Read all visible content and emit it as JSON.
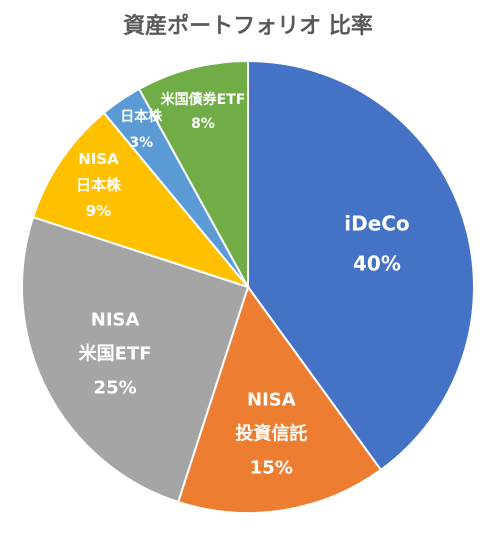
{
  "chart_data": {
    "type": "pie",
    "title": "資産ポートフォリオ 比率",
    "slices": [
      {
        "label_lines": [
          "iDeCo"
        ],
        "value": 40,
        "value_label": "40%",
        "color": "#4472C4"
      },
      {
        "label_lines": [
          "NISA",
          "投資信託"
        ],
        "value": 15,
        "value_label": "15%",
        "color": "#ED7D31"
      },
      {
        "label_lines": [
          "NISA",
          "米国ETF"
        ],
        "value": 25,
        "value_label": "25%",
        "color": "#A5A5A5"
      },
      {
        "label_lines": [
          "NISA",
          "日本株"
        ],
        "value": 9,
        "value_label": "9%",
        "color": "#FFC000"
      },
      {
        "label_lines": [
          "日本株"
        ],
        "value": 3,
        "value_label": "3%",
        "color": "#5B9BD5"
      },
      {
        "label_lines": [
          "米国債券ETF"
        ],
        "value": 8,
        "value_label": "8%",
        "color": "#70AD47"
      }
    ],
    "legend": "none"
  }
}
